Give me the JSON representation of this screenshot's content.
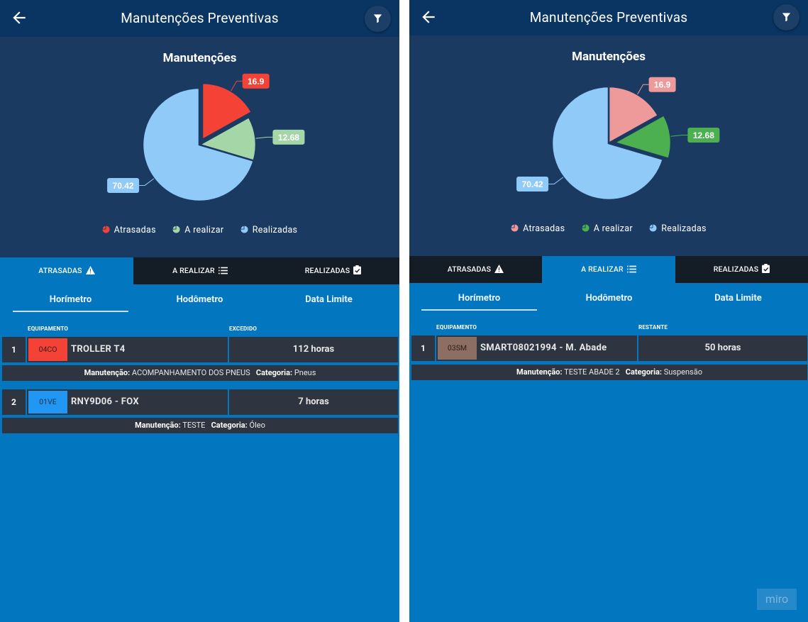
{
  "screens": [
    {
      "appbar": {
        "title": "Manutenções Preventivas"
      },
      "chart_data": {
        "type": "pie",
        "title": "Manutenções",
        "categories": [
          "Atrasadas",
          "A realizar",
          "Realizadas"
        ],
        "values": [
          16.9,
          12.68,
          70.42
        ],
        "value_labels": [
          "16.9",
          "12.68",
          "70.42"
        ],
        "colors": [
          "#f44336",
          "#a5d6a7",
          "#90caf9"
        ],
        "exploded": "Atrasadas",
        "legend_position": "bottom"
      },
      "tabs": [
        {
          "label": "ATRASADAS",
          "icon": "warning-icon"
        },
        {
          "label": "A REALIZAR",
          "icon": "list-icon"
        },
        {
          "label": "REALIZADAS",
          "icon": "clipboard-check-icon"
        }
      ],
      "active_tab": 0,
      "subtabs": [
        "Horímetro",
        "Hodômetro",
        "Data Limite"
      ],
      "active_subtab": 0,
      "columns": {
        "equipment": "EQUIPAMENTO",
        "value": "EXCEDIDO"
      },
      "rows": [
        {
          "num": "1",
          "code": "04CO",
          "code_color": "#f44336",
          "code_text_color": "#3a1a18",
          "name": "TROLLER T4",
          "value": "112 horas",
          "maint_label": "Manutenção:",
          "maint_value": "ACOMPANHAMENTO DOS PNEUS",
          "cat_label": "Categoria:",
          "cat_value": "Pneus"
        },
        {
          "num": "2",
          "code": "01VE",
          "code_color": "#2196f3",
          "code_text_color": "#0f2f4a",
          "name": "RNY9D06 - FOX",
          "value": "7 horas",
          "maint_label": "Manutenção:",
          "maint_value": "TESTE",
          "cat_label": "Categoria:",
          "cat_value": "Óleo"
        }
      ]
    },
    {
      "appbar": {
        "title": "Manutenções Preventivas"
      },
      "chart_data": {
        "type": "pie",
        "title": "Manutenções",
        "categories": [
          "Atrasadas",
          "A realizar",
          "Realizadas"
        ],
        "values": [
          16.9,
          12.68,
          70.42
        ],
        "value_labels": [
          "16.9",
          "12.68",
          "70.42"
        ],
        "colors": [
          "#ef9a9a",
          "#4caf50",
          "#90caf9"
        ],
        "exploded": "A realizar",
        "legend_position": "bottom"
      },
      "tabs": [
        {
          "label": "ATRASADAS",
          "icon": "warning-icon"
        },
        {
          "label": "A REALIZAR",
          "icon": "list-icon"
        },
        {
          "label": "REALIZADAS",
          "icon": "clipboard-check-icon"
        }
      ],
      "active_tab": 1,
      "subtabs": [
        "Horímetro",
        "Hodômetro",
        "Data Limite"
      ],
      "active_subtab": 0,
      "columns": {
        "equipment": "EQUIPAMENTO",
        "value": "RESTANTE"
      },
      "rows": [
        {
          "num": "1",
          "code": "03SM",
          "code_color": "#8d6e63",
          "code_text_color": "#2b1d18",
          "name": "SMART08021994 - M. Abade",
          "value": "50 horas",
          "maint_label": "Manutenção:",
          "maint_value": "TESTE ABADE 2",
          "cat_label": "Categoria:",
          "cat_value": "Suspensão"
        }
      ]
    }
  ],
  "watermark": "miro"
}
